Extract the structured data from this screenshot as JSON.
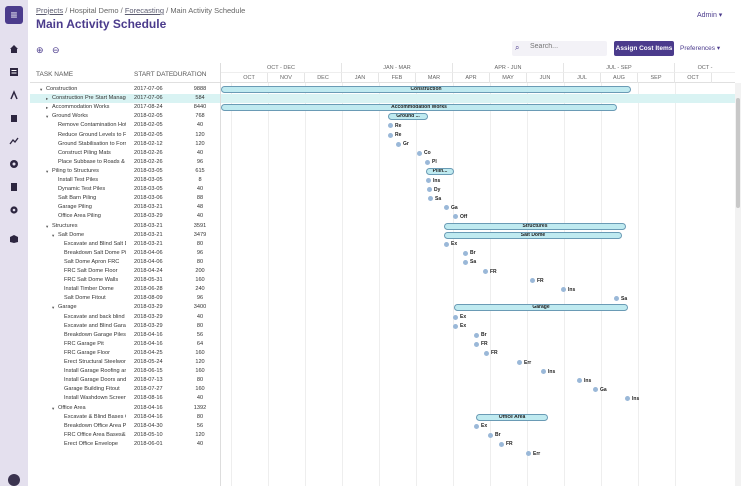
{
  "breadcrumb": {
    "projects": "Projects",
    "sep1": "/",
    "project": "Hospital Demo",
    "sep2": "/",
    "forecasting": "Forecasting",
    "sep3": "/",
    "current": "Main Activity Schedule"
  },
  "page_title": "Main Activity Schedule",
  "user_menu": "Admin ▾",
  "toolbar": {
    "zoom_in_icon": "⊕",
    "zoom_out_icon": "⊖",
    "search_icon": "🔍",
    "search_placeholder": "Search...",
    "assign_label": "Assign Cost Items",
    "preferences_label": "Preferences ▾"
  },
  "columns": {
    "task": "TASK NAME",
    "start": "START DATE",
    "duration": "DURATION"
  },
  "timescale": {
    "quarters": [
      "OCT - DEC",
      "JAN - MAR",
      "APR - JUN",
      "JUL - SEP",
      "OCT -"
    ],
    "months": [
      "OCT",
      "NOV",
      "DEC",
      "JAN",
      "FEB",
      "MAR",
      "APR",
      "MAY",
      "JUN",
      "JUL",
      "AUG",
      "SEP",
      "OCT"
    ]
  },
  "tasks": [
    {
      "name": "Construction",
      "start": "2017-07-06",
      "duration": "9888",
      "level": 0,
      "toggle": "▾"
    },
    {
      "name": "Construction Pre Start Manage",
      "start": "2017-07-06",
      "duration": "584",
      "level": 1,
      "toggle": "▸",
      "selected": true
    },
    {
      "name": "Accommodation Works",
      "start": "2017-08-24",
      "duration": "8440",
      "level": 1,
      "toggle": "▸"
    },
    {
      "name": "Ground Works",
      "start": "2018-02-05",
      "duration": "768",
      "level": 1,
      "toggle": "▾"
    },
    {
      "name": "Remove Contamination Hot",
      "start": "2018-02-05",
      "duration": "40",
      "level": 2
    },
    {
      "name": "Reduce Ground Levels to Fo",
      "start": "2018-02-05",
      "duration": "120",
      "level": 2
    },
    {
      "name": "Ground Stabilisation to Form",
      "start": "2018-02-12",
      "duration": "120",
      "level": 2
    },
    {
      "name": "Construct Piling Mats",
      "start": "2018-02-26",
      "duration": "40",
      "level": 2
    },
    {
      "name": "Place Subbase to Roads & C",
      "start": "2018-02-26",
      "duration": "96",
      "level": 2
    },
    {
      "name": "Piling to Structures",
      "start": "2018-03-05",
      "duration": "615",
      "level": 1,
      "toggle": "▾"
    },
    {
      "name": "Install Test Piles",
      "start": "2018-03-05",
      "duration": "8",
      "level": 2
    },
    {
      "name": "Dynamic Test Piles",
      "start": "2018-03-05",
      "duration": "40",
      "level": 2
    },
    {
      "name": "Salt Barn Piling",
      "start": "2018-03-06",
      "duration": "88",
      "level": 2
    },
    {
      "name": "Garage Piling",
      "start": "2018-03-21",
      "duration": "48",
      "level": 2
    },
    {
      "name": "Office Area Piling",
      "start": "2018-03-29",
      "duration": "40",
      "level": 2
    },
    {
      "name": "Structures",
      "start": "2018-03-21",
      "duration": "3591",
      "level": 1,
      "toggle": "▾"
    },
    {
      "name": "Salt Dome",
      "start": "2018-03-21",
      "duration": "3479",
      "level": 2,
      "toggle": "▾"
    },
    {
      "name": "Excavate and Blind Salt Do",
      "start": "2018-03-21",
      "duration": "80",
      "level": 3
    },
    {
      "name": "Breakdown Salt Dome Pile",
      "start": "2018-04-06",
      "duration": "96",
      "level": 3
    },
    {
      "name": "Salt Dome Apron FRC",
      "start": "2018-04-06",
      "duration": "80",
      "level": 3
    },
    {
      "name": "FRC Salt Dome Floor",
      "start": "2018-04-24",
      "duration": "200",
      "level": 3
    },
    {
      "name": "FRC Salt Dome Walls",
      "start": "2018-05-31",
      "duration": "160",
      "level": 3
    },
    {
      "name": "Install Timber Dome",
      "start": "2018-06-28",
      "duration": "240",
      "level": 3
    },
    {
      "name": "Salt Dome Fitout",
      "start": "2018-08-09",
      "duration": "96",
      "level": 3
    },
    {
      "name": "Garage",
      "start": "2018-03-29",
      "duration": "3400",
      "level": 2,
      "toggle": "▾"
    },
    {
      "name": "Excavate and back blind C",
      "start": "2018-03-29",
      "duration": "40",
      "level": 3
    },
    {
      "name": "Excavate and Blind Garag",
      "start": "2018-03-29",
      "duration": "80",
      "level": 3
    },
    {
      "name": "Breakdown Garage Piles",
      "start": "2018-04-16",
      "duration": "56",
      "level": 3
    },
    {
      "name": "FRC Garage Pit",
      "start": "2018-04-16",
      "duration": "64",
      "level": 3
    },
    {
      "name": "FRC Garage Floor",
      "start": "2018-04-25",
      "duration": "160",
      "level": 3
    },
    {
      "name": "Erect Structural Steelwork",
      "start": "2018-05-24",
      "duration": "120",
      "level": 3
    },
    {
      "name": "Install Garage Roofing and",
      "start": "2018-06-15",
      "duration": "160",
      "level": 3
    },
    {
      "name": "Install Garage Doors and I",
      "start": "2018-07-13",
      "duration": "80",
      "level": 3
    },
    {
      "name": "Garage Building Fitout",
      "start": "2018-07-27",
      "duration": "160",
      "level": 3
    },
    {
      "name": "Install Washdown Screen",
      "start": "2018-08-16",
      "duration": "40",
      "level": 3
    },
    {
      "name": "Office Area",
      "start": "2018-04-16",
      "duration": "1392",
      "level": 2,
      "toggle": "▾"
    },
    {
      "name": "Excavate & Blind Bases O",
      "start": "2018-04-16",
      "duration": "80",
      "level": 3
    },
    {
      "name": "Breakdown Office Area Pil",
      "start": "2018-04-30",
      "duration": "56",
      "level": 3
    },
    {
      "name": "FRC Office Area Bases&B",
      "start": "2018-05-10",
      "line": "",
      "duration": "120",
      "level": 3
    },
    {
      "name": "Erect Office Envelope",
      "start": "2018-06-01",
      "duration": "40",
      "level": 3
    }
  ],
  "gantt_labels": {
    "construction": "Construction",
    "accommodation": "Accommodation Works",
    "ground": "Ground ...",
    "piling": "Pilin...",
    "structures": "Structures",
    "salt_dome": "Salt Dome",
    "garage": "Garage",
    "office": "Office Area",
    "t_re1": "Re",
    "t_re2": "Re",
    "t_gr": "Gr",
    "t_co": "Co",
    "t_pl": "Pl",
    "t_ins": "Ins",
    "t_dy": "Dy",
    "t_sa": "Sa",
    "t_ga": "Ga",
    "t_of": "Off",
    "s_ex": "Ex",
    "s_br": "Br",
    "s_sa": "Sa",
    "s_fr1": "FR",
    "s_fr2": "FR",
    "s_ins": "Ins",
    "s_sa2": "Sa",
    "g_ex1": "Ex",
    "g_ex2": "Ex",
    "g_br": "Br",
    "g_fr1": "FR",
    "g_fr2": "FR",
    "g_er": "Err",
    "g_ins1": "Ins",
    "g_ins2": "Ins",
    "g_ga": "Ga",
    "g_ins3": "Ins",
    "o_ex": "Ex",
    "o_br": "Br",
    "o_fr": "FR",
    "o_er": "Err"
  }
}
